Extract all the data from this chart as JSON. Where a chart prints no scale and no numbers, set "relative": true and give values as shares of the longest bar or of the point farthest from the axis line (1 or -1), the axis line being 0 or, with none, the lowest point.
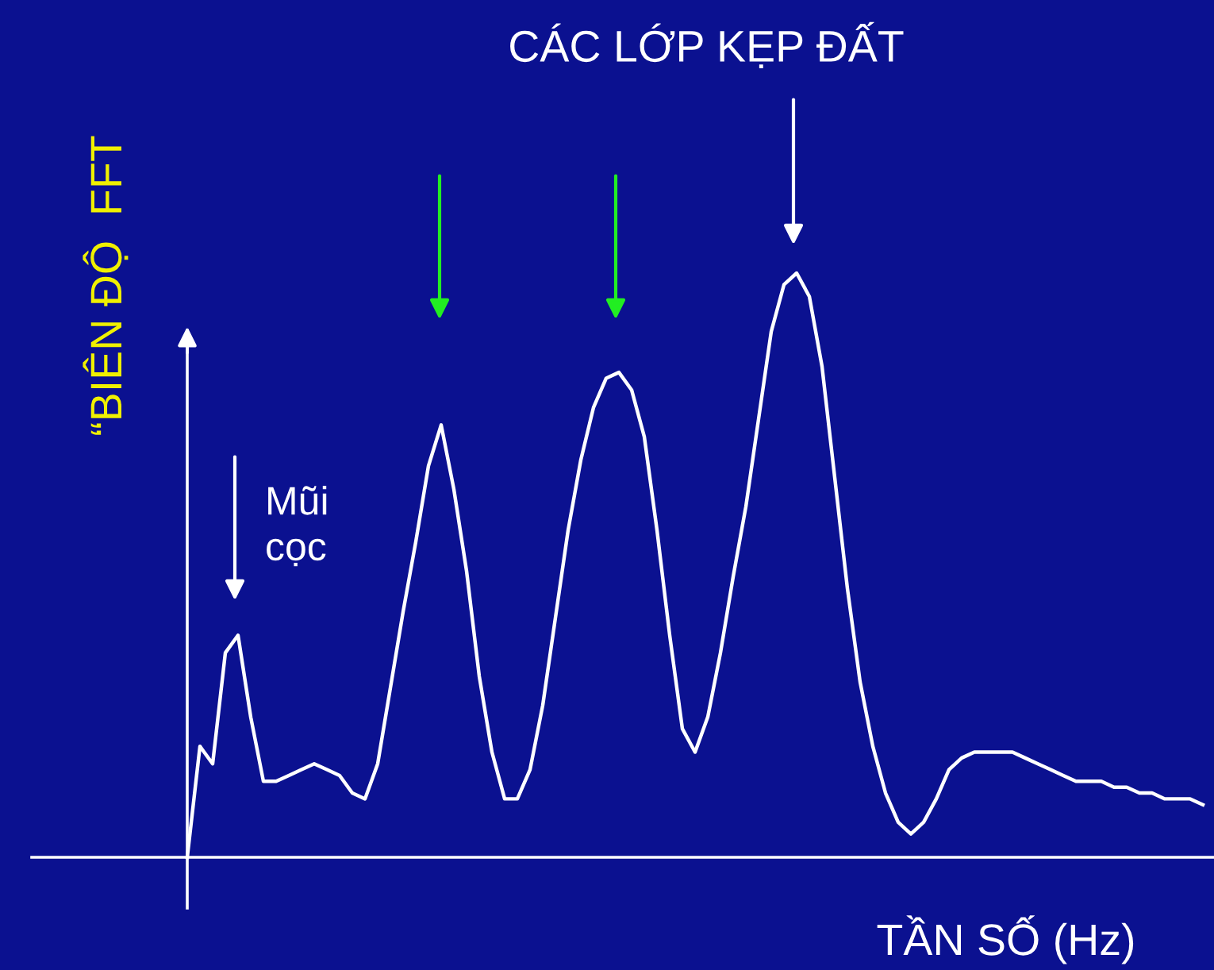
{
  "chart_data": {
    "type": "line",
    "relative": true,
    "xlabel": "TẦN SỐ (Hz)",
    "ylabel": "“BIÊN ĐỘ  FFT",
    "categories": [
      null,
      null,
      null,
      null,
      null,
      null,
      null,
      null,
      null,
      null,
      null,
      null,
      null,
      null,
      null,
      null,
      null,
      null,
      null,
      null,
      null,
      null,
      null,
      null,
      null,
      null,
      null,
      null,
      null,
      null,
      null,
      null,
      null,
      null,
      null,
      null,
      null,
      null,
      null,
      null,
      null,
      null,
      null,
      null,
      null,
      null,
      null,
      null,
      null,
      null,
      null,
      null,
      null,
      null,
      null,
      null,
      null,
      null,
      null,
      null,
      null,
      null,
      null,
      null,
      null,
      null,
      null,
      null,
      null,
      null,
      null,
      null,
      null,
      null,
      null,
      null,
      null,
      null,
      null,
      null,
      null
    ],
    "series": [
      {
        "color": "#ffffff",
        "values": [
          0,
          0.19,
          0.16,
          0.35,
          0.38,
          0.24,
          0.13,
          0.13,
          0.14,
          0.15,
          0.16,
          0.15,
          0.14,
          0.11,
          0.1,
          0.16,
          0.29,
          0.42,
          0.54,
          0.67,
          0.74,
          0.63,
          0.49,
          0.31,
          0.18,
          0.1,
          0.1,
          0.15,
          0.26,
          0.41,
          0.56,
          0.68,
          0.77,
          0.82,
          0.83,
          0.8,
          0.72,
          0.56,
          0.38,
          0.22,
          0.18,
          0.24,
          0.35,
          0.48,
          0.6,
          0.75,
          0.9,
          0.98,
          1,
          0.96,
          0.84,
          0.65,
          0.46,
          0.3,
          0.19,
          0.11,
          0.06,
          0.04,
          0.06,
          0.1,
          0.15,
          0.17,
          0.18,
          0.18,
          0.18,
          0.18,
          0.17,
          0.16,
          0.15,
          0.14,
          0.13,
          0.13,
          0.13,
          0.12,
          0.12,
          0.11,
          0.11,
          0.1,
          0.1,
          0.1,
          0.09
        ]
      }
    ],
    "annotations": [
      "CÁC LỚP KẸP ĐẤT",
      "Mũi cọc"
    ],
    "marker": "none",
    "line_style": "solid"
  }
}
